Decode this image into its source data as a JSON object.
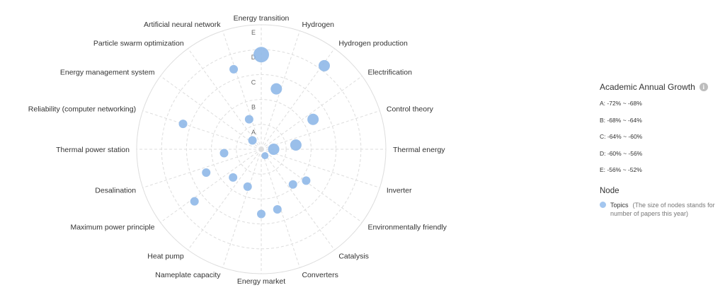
{
  "chart_data": {
    "type": "scatter",
    "subtype": "polar-bubble",
    "rings": [
      "A",
      "B",
      "C",
      "D",
      "E"
    ],
    "spokes": [
      "Energy transition",
      "Hydrogen",
      "Hydrogen production",
      "Electrification",
      "Control theory",
      "Thermal energy",
      "Inverter",
      "Environmentally friendly",
      "Catalysis",
      "Converters",
      "Energy market",
      "Nameplate capacity",
      "Heat pump",
      "Maximum power principle",
      "Desalination",
      "Thermal power station",
      "Reliability (computer networking)",
      "Energy management system",
      "Particle swarm optimization",
      "Artificial neural network"
    ],
    "points": [
      {
        "angle_deg": 0,
        "radius_level": 3.8,
        "size": 11
      },
      {
        "angle_deg": 14,
        "radius_level": 2.5,
        "size": 8
      },
      {
        "angle_deg": 37,
        "radius_level": 4.2,
        "size": 8
      },
      {
        "angle_deg": 60,
        "radius_level": 2.4,
        "size": 8
      },
      {
        "angle_deg": 83,
        "radius_level": 1.4,
        "size": 8
      },
      {
        "angle_deg": 90,
        "radius_level": 0.5,
        "size": 8
      },
      {
        "angle_deg": 150,
        "radius_level": 0.3,
        "size": 5
      },
      {
        "angle_deg": 125,
        "radius_level": 2.2,
        "size": 6
      },
      {
        "angle_deg": 138,
        "radius_level": 1.9,
        "size": 6
      },
      {
        "angle_deg": 165,
        "radius_level": 2.5,
        "size": 6
      },
      {
        "angle_deg": 180,
        "radius_level": 2.6,
        "size": 6
      },
      {
        "angle_deg": 200,
        "radius_level": 1.6,
        "size": 6
      },
      {
        "angle_deg": 225,
        "radius_level": 1.6,
        "size": 6
      },
      {
        "angle_deg": 232,
        "radius_level": 3.4,
        "size": 6
      },
      {
        "angle_deg": 247,
        "radius_level": 2.4,
        "size": 6
      },
      {
        "angle_deg": 264,
        "radius_level": 1.5,
        "size": 6
      },
      {
        "angle_deg": 288,
        "radius_level": 3.3,
        "size": 6
      },
      {
        "angle_deg": 338,
        "radius_level": 1.3,
        "size": 6
      },
      {
        "angle_deg": 341,
        "radius_level": 3.4,
        "size": 6
      },
      {
        "angle_deg": 315,
        "radius_level": 0.5,
        "size": 6
      }
    ]
  },
  "legend": {
    "title": "Academic Annual Growth",
    "ranges": [
      "A: -72%  ~  -68%",
      "B: -68%  ~  -64%",
      "C: -64%  ~  -60%",
      "D: -60%  ~  -56%",
      "E: -56%  ~  -52%"
    ],
    "node_title": "Node",
    "node_label": "Topics",
    "node_note": "(The size of nodes stands for number of papers this year)",
    "colors": {
      "bubble": "#8fb8e8",
      "grid": "#dddddd",
      "info": "#bdbdbd"
    }
  }
}
